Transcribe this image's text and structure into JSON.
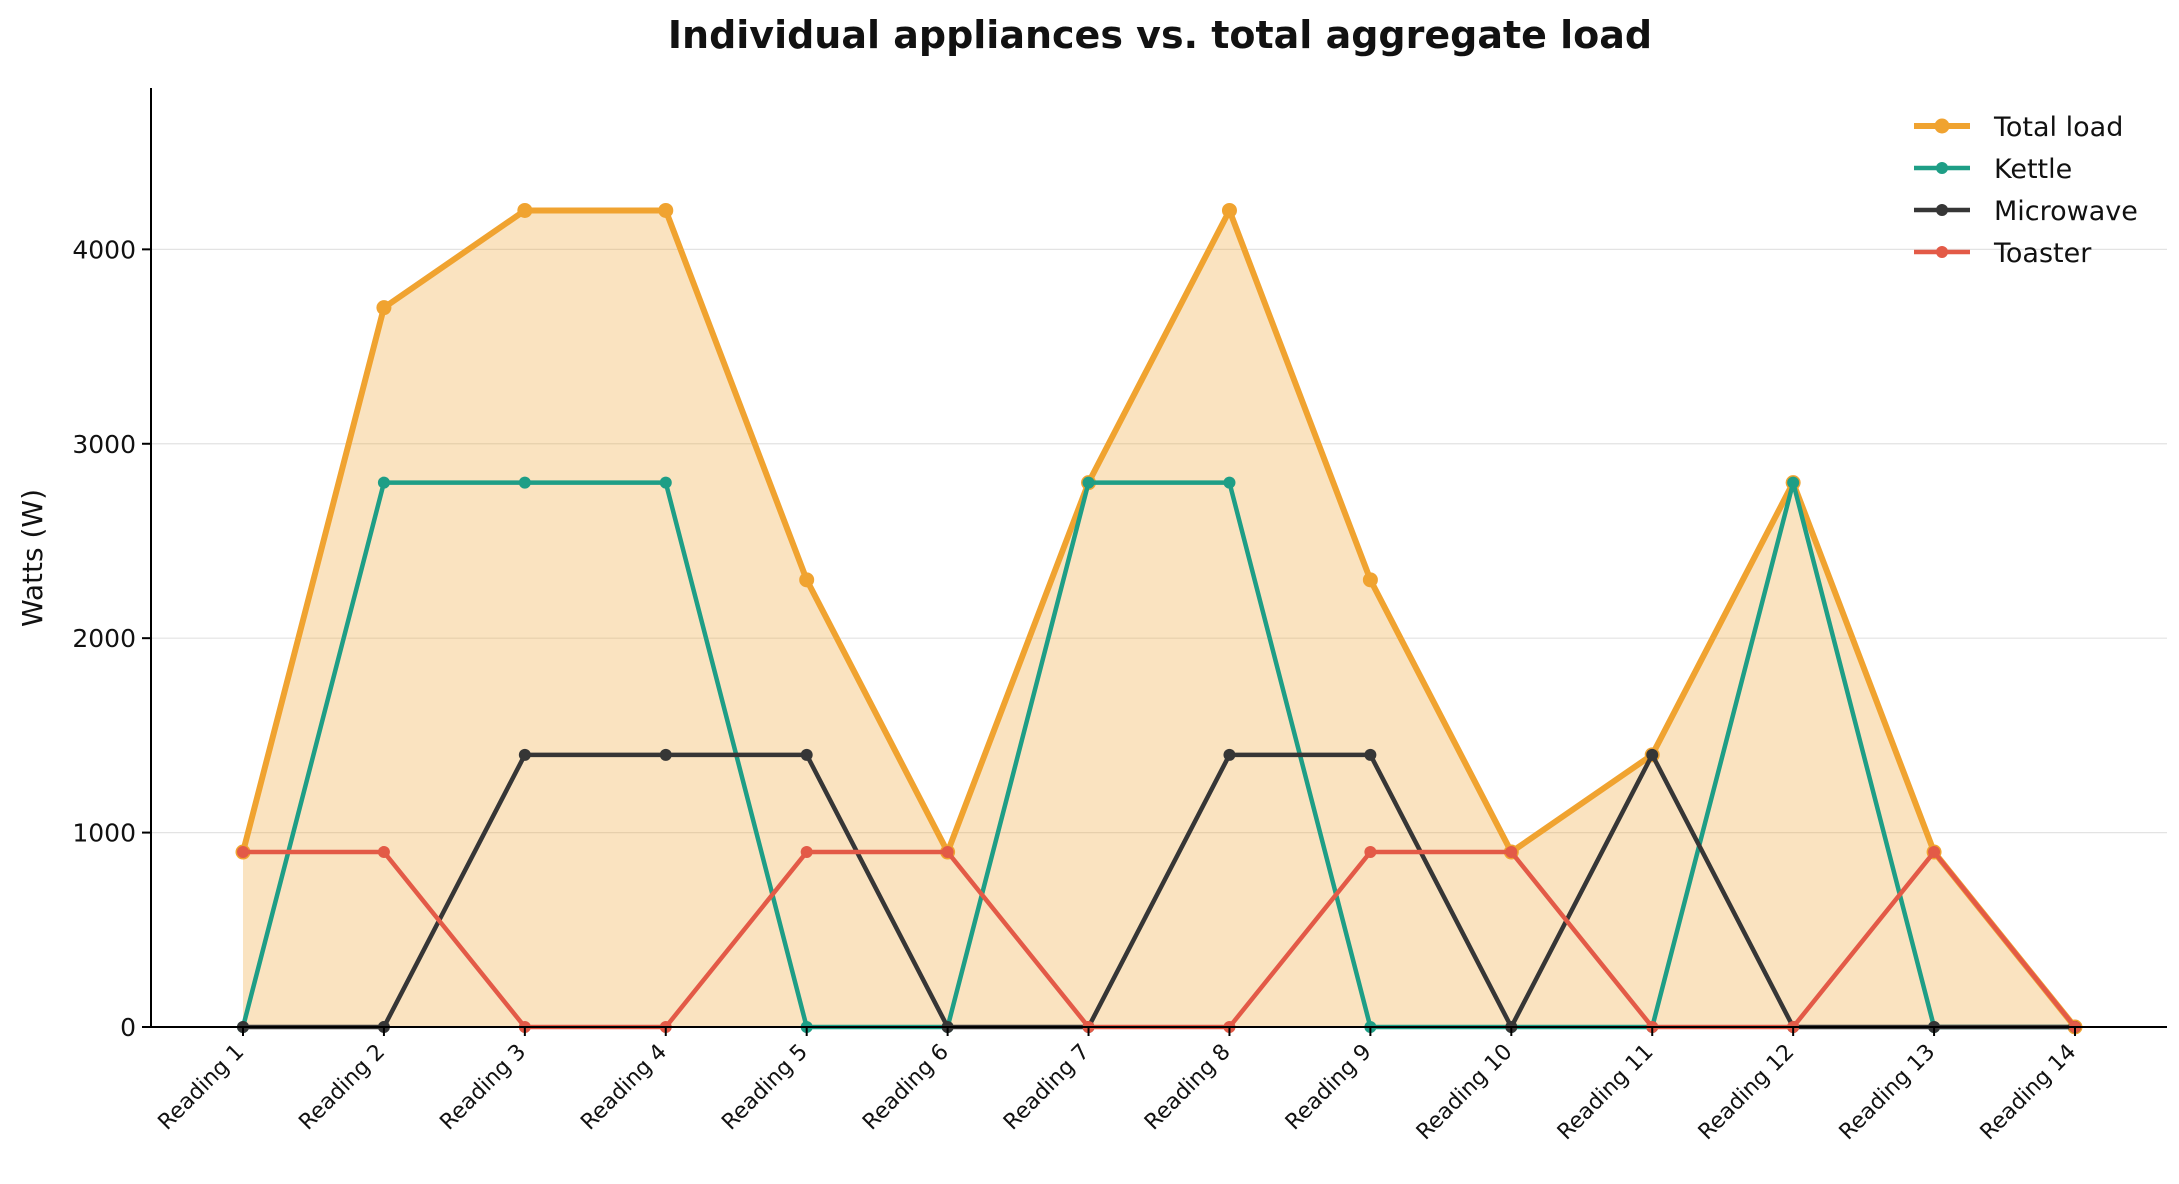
{
  "chart_data": {
    "type": "line",
    "title": "Individual appliances vs. total aggregate load",
    "xlabel": "",
    "ylabel": "Watts (W)",
    "categories": [
      "Reading 1",
      "Reading 2",
      "Reading 3",
      "Reading 4",
      "Reading 5",
      "Reading 6",
      "Reading 7",
      "Reading 8",
      "Reading 9",
      "Reading 10",
      "Reading 11",
      "Reading 12",
      "Reading 13",
      "Reading 14"
    ],
    "ylim": [
      0,
      4830
    ],
    "yticks": [
      0,
      1000,
      2000,
      3000,
      4000
    ],
    "grid": "horizontal",
    "legend_position": "top-right",
    "series": [
      {
        "name": "Total load",
        "color": "#f0a330",
        "fill": "area",
        "values": [
          900,
          3700,
          4200,
          4200,
          2300,
          900,
          2800,
          4200,
          2300,
          900,
          1400,
          2800,
          900,
          0
        ]
      },
      {
        "name": "Kettle",
        "color": "#1e9e86",
        "values": [
          0,
          2800,
          2800,
          2800,
          0,
          0,
          2800,
          2800,
          0,
          0,
          0,
          2800,
          0,
          0
        ]
      },
      {
        "name": "Microwave",
        "color": "#363636",
        "values": [
          0,
          0,
          1400,
          1400,
          1400,
          0,
          0,
          1400,
          1400,
          0,
          1400,
          0,
          0,
          0
        ]
      },
      {
        "name": "Toaster",
        "color": "#e35a47",
        "values": [
          900,
          900,
          0,
          0,
          900,
          900,
          0,
          0,
          900,
          900,
          0,
          0,
          900,
          0
        ]
      }
    ]
  }
}
